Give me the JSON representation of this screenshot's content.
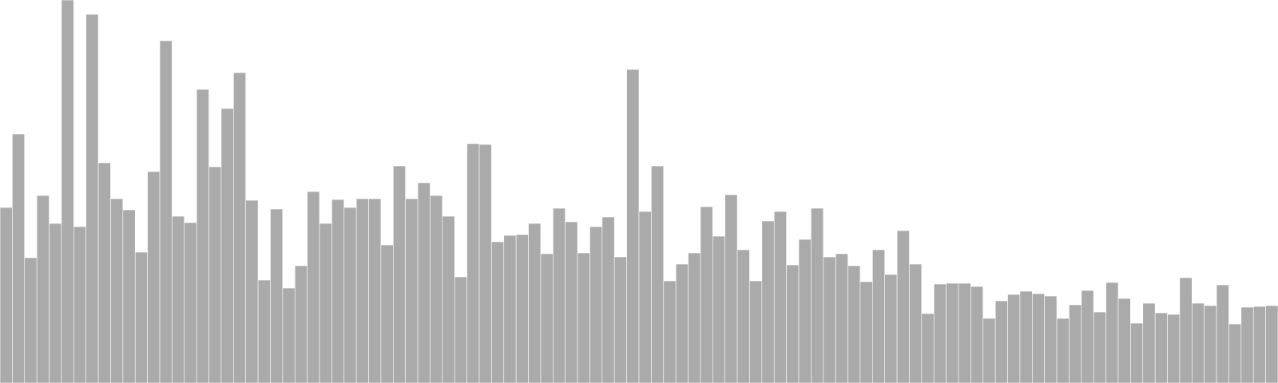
{
  "chart_data": {
    "type": "bar",
    "values": [
      220,
      312,
      157,
      235,
      200,
      480,
      196,
      462,
      276,
      231,
      217,
      164,
      265,
      429,
      209,
      201,
      368,
      271,
      344,
      389,
      229,
      129,
      218,
      119,
      147,
      240,
      200,
      230,
      220,
      231,
      231,
      173,
      272,
      231,
      251,
      235,
      209,
      133,
      300,
      299,
      177,
      185,
      186,
      200,
      162,
      219,
      202,
      163,
      196,
      208,
      158,
      393,
      215,
      272,
      128,
      149,
      163,
      221,
      184,
      236,
      167,
      128,
      203,
      215,
      148,
      180,
      219,
      158,
      162,
      147,
      127,
      167,
      136,
      191,
      149,
      87,
      124,
      125,
      125,
      121,
      81,
      103,
      111,
      115,
      112,
      109,
      81,
      98,
      116,
      89,
      126,
      106,
      75,
      100,
      88,
      86,
      132,
      100,
      97,
      123,
      74,
      95,
      96,
      97
    ],
    "ylim": [
      0,
      480
    ],
    "bar_color": "#aaaaaa",
    "edge_color": "#ffffff",
    "grid": false,
    "axes_visible": false
  }
}
